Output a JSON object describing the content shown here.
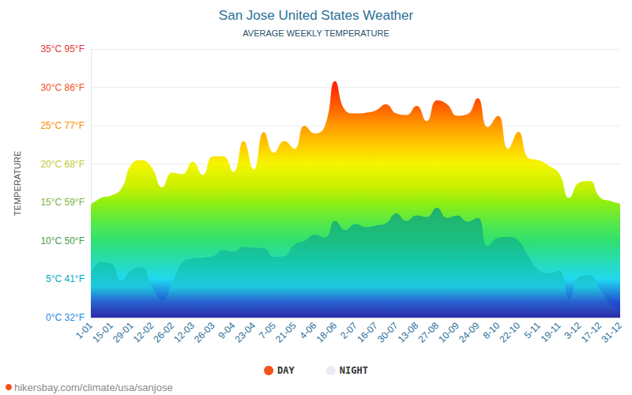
{
  "chart_data": {
    "type": "area",
    "title": "San Jose United States Weather",
    "subtitle": "AVERAGE WEEKLY TEMPERATURE",
    "y_label": "TEMPERATURE",
    "source": "hikersbay.com/climate/usa/sanjose",
    "categories": [
      "1-01",
      null,
      "15-01",
      null,
      "29-01",
      null,
      "12-02",
      null,
      "26-02",
      null,
      "12-03",
      null,
      "26-03",
      null,
      "9-04",
      null,
      "23-04",
      null,
      "7-05",
      null,
      "21-05",
      null,
      "4-06",
      null,
      "18-06",
      null,
      "2-07",
      null,
      "16-07",
      null,
      "30-07",
      null,
      "13-08",
      null,
      "27-08",
      null,
      "10-09",
      null,
      "24-09",
      null,
      "8-10",
      null,
      "22-10",
      null,
      "5-11",
      null,
      "19-11",
      null,
      "3-12",
      null,
      "17-12",
      null,
      "31-12"
    ],
    "series": [
      {
        "name": "DAY",
        "color": "#f4511e",
        "values": [
          14.7,
          15.6,
          15.9,
          16.8,
          20.0,
          20.5,
          19.5,
          17.0,
          18.9,
          18.7,
          20.3,
          18.6,
          21.0,
          21.0,
          19.0,
          23.0,
          19.3,
          24.2,
          21.5,
          23.0,
          22.0,
          25.0,
          24.0,
          25.0,
          30.8,
          27.0,
          26.6,
          26.7,
          27.0,
          27.8,
          26.6,
          26.4,
          27.6,
          25.6,
          28.3,
          27.8,
          26.3,
          26.5,
          28.6,
          24.8,
          26.3,
          22.0,
          24.2,
          20.8,
          20.5,
          19.8,
          18.8,
          15.6,
          17.6,
          17.8,
          15.7,
          15.2,
          14.8
        ]
      },
      {
        "name": "NIGHT",
        "color": "#e8eaf6",
        "values": [
          5.8,
          7.2,
          7.0,
          4.8,
          6.2,
          6.5,
          4.0,
          2.3,
          4.5,
          7.2,
          7.7,
          7.8,
          8.0,
          8.8,
          8.6,
          9.2,
          9.1,
          9.0,
          7.9,
          8.0,
          9.5,
          10.0,
          10.8,
          10.4,
          12.6,
          11.4,
          12.2,
          11.8,
          12.0,
          12.3,
          13.6,
          12.6,
          13.3,
          13.1,
          14.3,
          13.0,
          13.3,
          12.5,
          13.0,
          9.3,
          10.4,
          10.5,
          10.0,
          8.0,
          6.2,
          5.8,
          6.1,
          2.4,
          5.3,
          5.5,
          3.7,
          1.8,
          0.9
        ]
      }
    ],
    "ylim": [
      0,
      35
    ],
    "yticks": [
      {
        "value": 0,
        "label": "0°C 32°F"
      },
      {
        "value": 5,
        "label": "5°C 41°F"
      },
      {
        "value": 10,
        "label": "10°C 50°F"
      },
      {
        "value": 15,
        "label": "15°C 59°F"
      },
      {
        "value": 20,
        "label": "20°C 68°F"
      },
      {
        "value": 25,
        "label": "25°C 77°F"
      },
      {
        "value": 30,
        "label": "30°C 86°F"
      },
      {
        "value": 35,
        "label": "35°C 95°F"
      }
    ],
    "grid": true,
    "legend": "bottom"
  }
}
